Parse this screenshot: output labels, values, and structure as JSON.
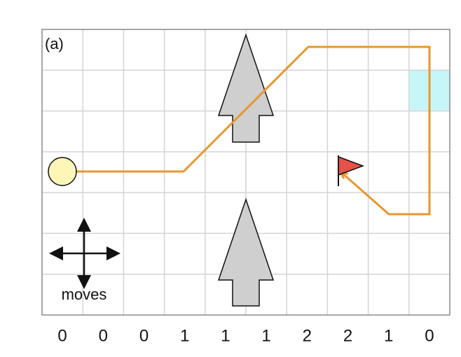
{
  "panel_label": "(a)",
  "legend": {
    "label": "moves"
  },
  "column_values": [
    0,
    0,
    0,
    1,
    1,
    1,
    2,
    2,
    1,
    0
  ]
}
